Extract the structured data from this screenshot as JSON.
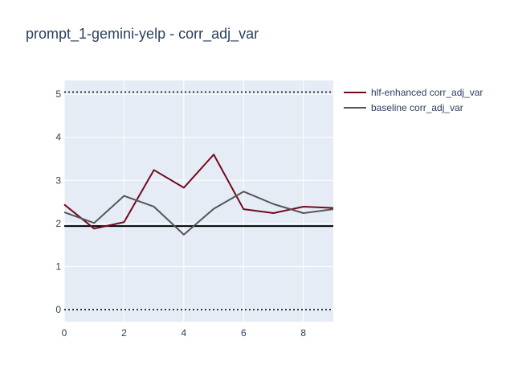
{
  "chart_data": {
    "type": "line",
    "title": "prompt_1-gemini-yelp - corr_adj_var",
    "xlabel": "",
    "ylabel": "",
    "xlim": [
      0,
      9
    ],
    "ylim": [
      -0.28,
      5.32
    ],
    "x_ticks": [
      "0",
      "2",
      "4",
      "6",
      "8"
    ],
    "y_ticks": [
      "0",
      "1",
      "2",
      "3",
      "4",
      "5"
    ],
    "grid": true,
    "legend_position": "top-right",
    "x": [
      0,
      1,
      2,
      3,
      4,
      5,
      6,
      7,
      8,
      9
    ],
    "series": [
      {
        "name": "hlf-enhanced corr_adj_var",
        "color": "#720b1c",
        "values": [
          2.44,
          1.88,
          2.03,
          3.24,
          2.83,
          3.6,
          2.33,
          2.24,
          2.39,
          2.36
        ]
      },
      {
        "name": "baseline corr_adj_var",
        "color": "#555555",
        "values": [
          2.26,
          2.01,
          2.64,
          2.39,
          1.74,
          2.34,
          2.74,
          2.45,
          2.24,
          2.33
        ]
      }
    ],
    "reference_lines": [
      {
        "y": 5.05,
        "style": "dotted",
        "color": "#333333"
      },
      {
        "y": 0.0,
        "style": "dotted",
        "color": "#333333"
      },
      {
        "y": 1.94,
        "style": "solid",
        "color": "#000000"
      }
    ]
  }
}
